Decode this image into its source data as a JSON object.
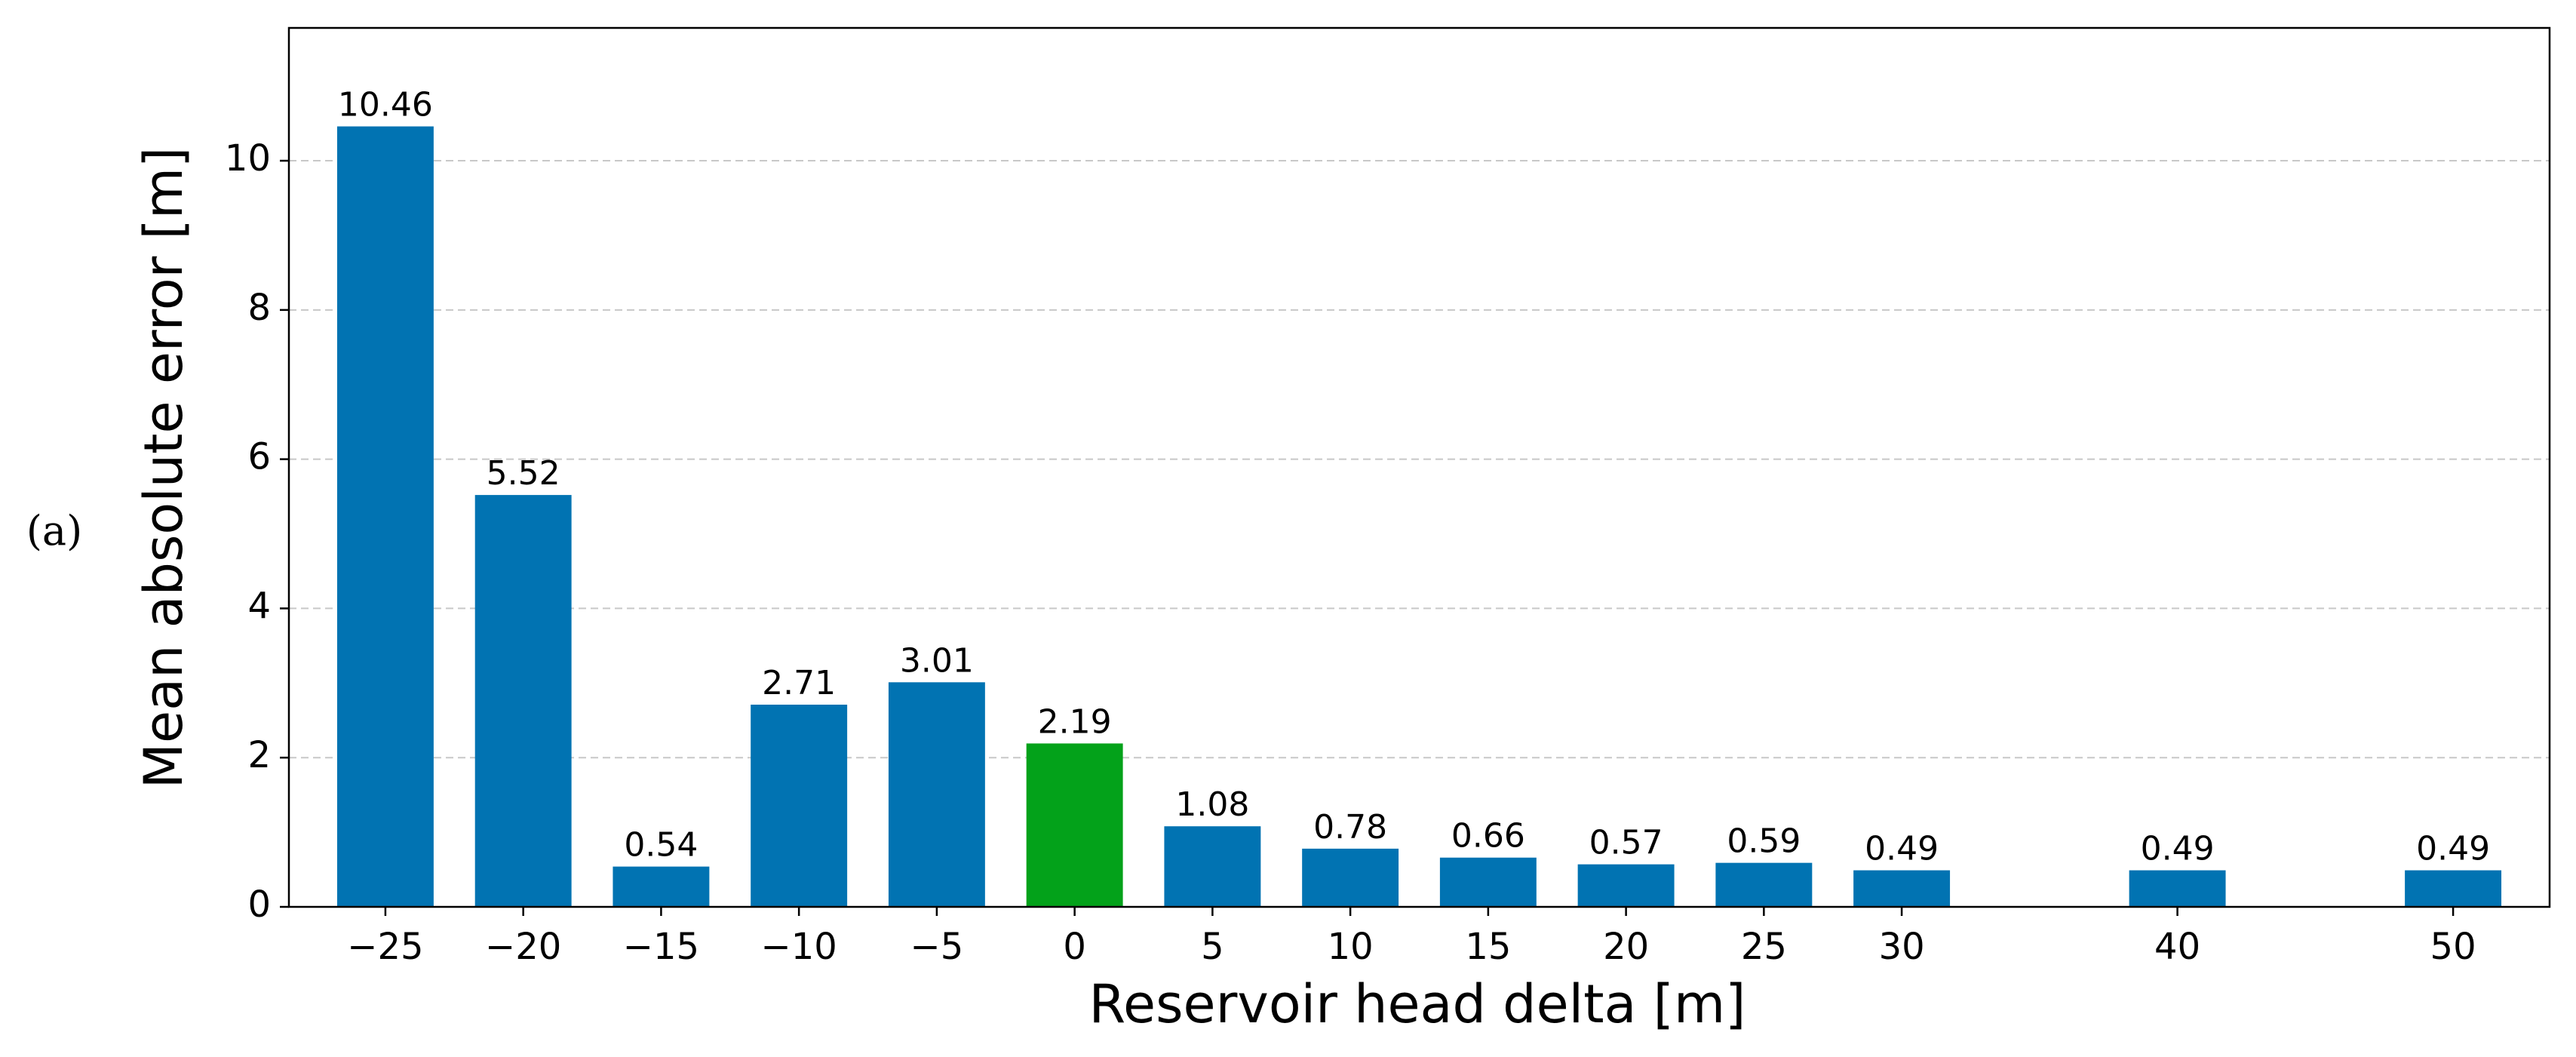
{
  "chart_data": {
    "type": "bar",
    "annotation": "(a)",
    "x_label": "Reservoir head delta [m]",
    "y_label": "Mean absolute error [m]",
    "x": [
      -25,
      -20,
      -15,
      -10,
      -5,
      0,
      5,
      10,
      15,
      20,
      25,
      30,
      40,
      50
    ],
    "values": [
      10.46,
      5.52,
      0.54,
      2.71,
      3.01,
      2.19,
      1.08,
      0.78,
      0.66,
      0.57,
      0.59,
      0.49,
      0.49,
      0.49
    ],
    "colors": [
      "#0173b2",
      "#0173b2",
      "#0173b2",
      "#0173b2",
      "#0173b2",
      "#03a21a",
      "#0173b2",
      "#0173b2",
      "#0173b2",
      "#0173b2",
      "#0173b2",
      "#0173b2",
      "#0173b2",
      "#0173b2"
    ],
    "xlim": [
      -28.5,
      53.5
    ],
    "ylim": [
      0,
      11.78
    ],
    "xticks": [
      {
        "value": -25,
        "label": "−25"
      },
      {
        "value": -20,
        "label": "−20"
      },
      {
        "value": -15,
        "label": "−15"
      },
      {
        "value": -10,
        "label": "−10"
      },
      {
        "value": -5,
        "label": "−5"
      },
      0,
      5,
      10,
      15,
      20,
      25,
      30,
      40,
      50
    ],
    "yticks": [
      0,
      2,
      4,
      6,
      8,
      10
    ],
    "grid": true
  }
}
